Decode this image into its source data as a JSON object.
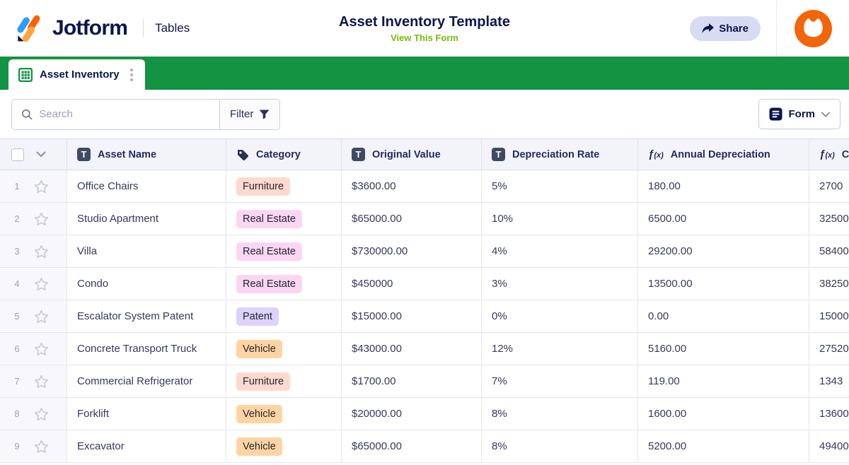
{
  "brand": {
    "name": "Jotform",
    "product": "Tables"
  },
  "header": {
    "title": "Asset Inventory Template",
    "view_form_link": "View This Form",
    "share_label": "Share"
  },
  "tab": {
    "label": "Asset Inventory"
  },
  "toolbar": {
    "search_placeholder": "Search",
    "filter_label": "Filter",
    "form_label": "Form"
  },
  "colors": {
    "brand_navy": "#0A1551",
    "tabbar_green": "#129442",
    "link_green": "#78BB07",
    "avatar_orange": "#F2650A",
    "share_pill": "#D8DBF2",
    "badge_furniture": "#FFD9CF",
    "badge_real_estate": "#FAD6F2",
    "badge_patent": "#DDD2FA",
    "badge_vehicle": "#FFD4A3"
  },
  "table": {
    "columns": [
      {
        "label": "Asset Name",
        "icon": "text-field-icon"
      },
      {
        "label": "Category",
        "icon": "tag-icon"
      },
      {
        "label": "Original Value",
        "icon": "text-field-icon"
      },
      {
        "label": "Depreciation Rate",
        "icon": "text-field-icon"
      },
      {
        "label": "Annual Depreciation",
        "icon": "formula-icon"
      },
      {
        "label": "C",
        "icon": "formula-icon"
      }
    ],
    "rows": [
      {
        "num": "1",
        "name": "Office Chairs",
        "category": "Furniture",
        "category_bg": "#FFD9CF",
        "original_value": "$3600.00",
        "depreciation_rate": "5%",
        "annual_depreciation": "180.00",
        "current_value": "2700"
      },
      {
        "num": "2",
        "name": "Studio Apartment",
        "category": "Real Estate",
        "category_bg": "#FAD6F2",
        "original_value": "$65000.00",
        "depreciation_rate": "10%",
        "annual_depreciation": "6500.00",
        "current_value": "32500"
      },
      {
        "num": "3",
        "name": "Villa",
        "category": "Real Estate",
        "category_bg": "#FAD6F2",
        "original_value": "$730000.00",
        "depreciation_rate": "4%",
        "annual_depreciation": "29200.00",
        "current_value": "58400"
      },
      {
        "num": "4",
        "name": "Condo",
        "category": "Real Estate",
        "category_bg": "#FAD6F2",
        "original_value": "$450000",
        "depreciation_rate": "3%",
        "annual_depreciation": "13500.00",
        "current_value": "38250"
      },
      {
        "num": "5",
        "name": "Escalator System Patent",
        "category": "Patent",
        "category_bg": "#DDD2FA",
        "original_value": "$15000.00",
        "depreciation_rate": "0%",
        "annual_depreciation": "0.00",
        "current_value": "15000"
      },
      {
        "num": "6",
        "name": "Concrete Transport Truck",
        "category": "Vehicle",
        "category_bg": "#FFD4A3",
        "original_value": "$43000.00",
        "depreciation_rate": "12%",
        "annual_depreciation": "5160.00",
        "current_value": "27520"
      },
      {
        "num": "7",
        "name": "Commercial Refrigerator",
        "category": "Furniture",
        "category_bg": "#FFD9CF",
        "original_value": "$1700.00",
        "depreciation_rate": "7%",
        "annual_depreciation": "119.00",
        "current_value": "1343"
      },
      {
        "num": "8",
        "name": "Forklift",
        "category": "Vehicle",
        "category_bg": "#FFD4A3",
        "original_value": "$20000.00",
        "depreciation_rate": "8%",
        "annual_depreciation": "1600.00",
        "current_value": "13600"
      },
      {
        "num": "9",
        "name": "Excavator",
        "category": "Vehicle",
        "category_bg": "#FFD4A3",
        "original_value": "$65000.00",
        "depreciation_rate": "8%",
        "annual_depreciation": "5200.00",
        "current_value": "49400"
      }
    ]
  }
}
